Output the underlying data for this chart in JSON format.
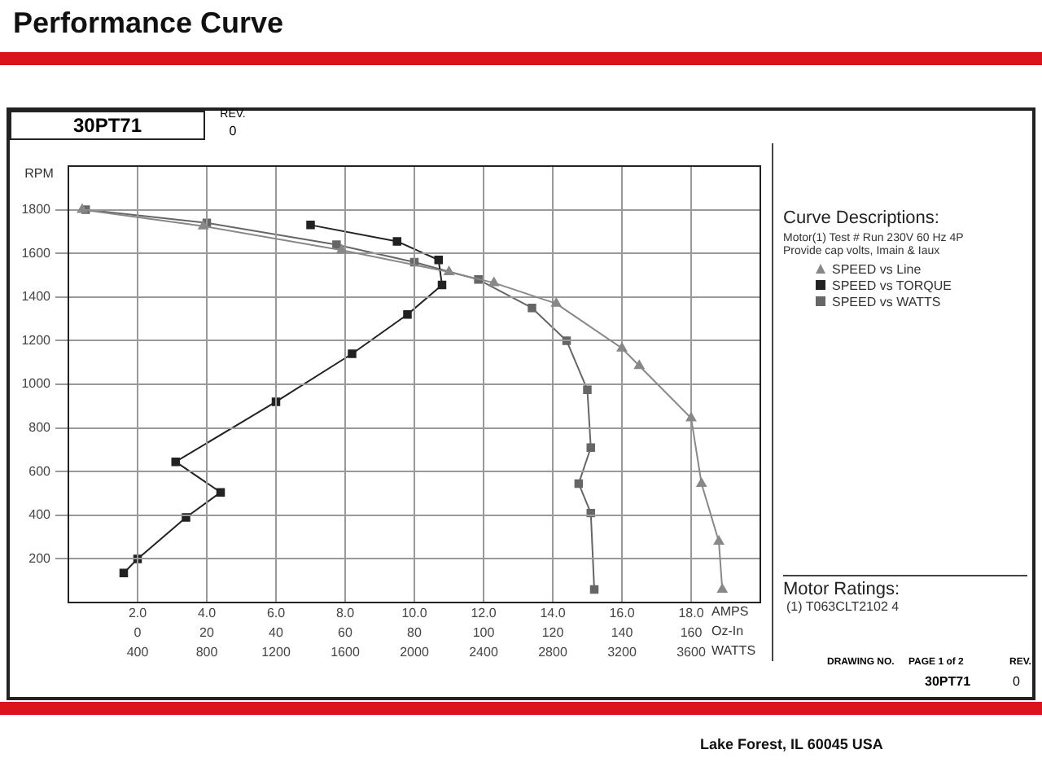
{
  "chart_data": [
    {
      "type": "line",
      "title": "Performance Curve",
      "subtitle": "30PT71",
      "ylabel": "RPM",
      "xlabel": "AMPS",
      "xlim": [
        0,
        20
      ],
      "xticks": [
        {
          "value": 2,
          "label": "2.0"
        },
        {
          "value": 4,
          "label": "4.0"
        },
        {
          "value": 6,
          "label": "6.0"
        },
        {
          "value": 8,
          "label": "8.0"
        },
        {
          "value": 10,
          "label": "10.0"
        },
        {
          "value": 12,
          "label": "12.0"
        },
        {
          "value": 14,
          "label": "14.0"
        },
        {
          "value": 16,
          "label": "16.0"
        },
        {
          "value": 18,
          "label": "18.0"
        }
      ],
      "ylim": [
        0,
        2000
      ],
      "yticks": [
        200,
        400,
        600,
        800,
        1000,
        1200,
        1400,
        1600,
        1800
      ],
      "grid": true,
      "legend": "right",
      "legend_title": "Curve Descriptions:",
      "series": [
        {
          "name": "SPEED vs Line",
          "color": "#888888",
          "marker": "triangle",
          "x": [
            0.4,
            3.9,
            7.9,
            11,
            12.3,
            14.1,
            16,
            16.5,
            18,
            18.3,
            18.8,
            18.9
          ],
          "values": [
            1800,
            1725,
            1615,
            1515,
            1465,
            1370,
            1165,
            1085,
            845,
            545,
            280,
            60
          ]
        }
      ],
      "annotations": [
        "REV.",
        "0",
        "Motor(1) Test # Run 230V 60 Hz 4P",
        "Provide cap volts, Imain & Iaux",
        "Motor Ratings:",
        "(1)  T063CLT2102  4",
        "DRAWING NO.",
        "PAGE 1 of 2",
        "30PT71",
        "REV.",
        "0",
        "Lake Forest, IL  60045  USA"
      ]
    },
    {
      "type": "line",
      "xlabel": "Oz-In",
      "xlim": [
        -20,
        180
      ],
      "xticks": [
        0,
        20,
        40,
        60,
        80,
        100,
        120,
        140,
        160
      ],
      "ylim": [
        0,
        2000
      ],
      "tick_labels": "x",
      "legend": "right",
      "series": [
        {
          "name": "SPEED vs TORQUE",
          "color": "#222222",
          "marker": "square",
          "x": [
            50,
            75,
            87,
            88,
            78,
            62,
            40,
            11,
            24,
            14,
            0,
            -4
          ],
          "values": [
            1730,
            1655,
            1570,
            1455,
            1320,
            1140,
            920,
            645,
            505,
            390,
            200,
            135
          ]
        }
      ]
    },
    {
      "type": "line",
      "xlabel": "WATTS",
      "xlim": [
        0,
        4000
      ],
      "xticks": [
        400,
        800,
        1200,
        1600,
        2000,
        2400,
        2800,
        3200,
        3600
      ],
      "ylim": [
        0,
        2000
      ],
      "tick_labels": "x",
      "legend": "right",
      "series": [
        {
          "name": "SPEED vs WATTS",
          "color": "#666666",
          "marker": "square",
          "x": [
            100,
            800,
            1550,
            2000,
            2370,
            2680,
            2880,
            3000,
            3020,
            2950,
            3020,
            3040
          ],
          "values": [
            1800,
            1740,
            1640,
            1560,
            1480,
            1350,
            1200,
            975,
            710,
            545,
            410,
            60
          ]
        }
      ]
    }
  ]
}
